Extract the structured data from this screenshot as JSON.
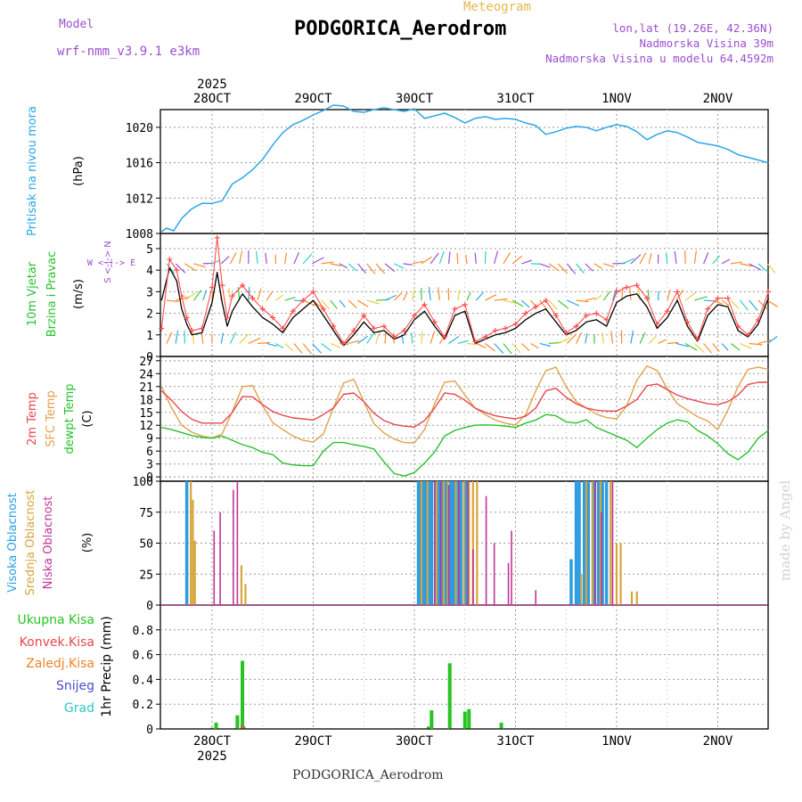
{
  "header": {
    "meteogram_label": "Meteogram",
    "model_label": "Model",
    "model_name": "wrf-nmm_v3.9.1  e3km",
    "station": "PODGORICA_Aerodrom",
    "lonlat": "lon,lat (19.26E, 42.36N)",
    "elevation": "Nadmorska Visina 39m",
    "model_elevation": "Nadmorska Visina u modelu 64.4592m",
    "footer": "PODGORICA_Aerodrom",
    "credit": "made by Angel"
  },
  "time_axis": {
    "top_year": "2025",
    "bottom_year": "2025",
    "days": [
      "28OCT",
      "29OCT",
      "30OCT",
      "31OCT",
      "1NOV",
      "2NOV"
    ]
  },
  "colors": {
    "pressure": "#2aa7e6",
    "wind_speed": "#000000",
    "gust": "#ff4d4d",
    "temp2m": "#e8474c",
    "sfc_temp": "#e0a24a",
    "dewpt": "#27c22d",
    "high_cloud": "#2a9de3",
    "mid_cloud": "#d6a53c",
    "low_cloud": "#c0359a",
    "precip_total": "#25c41f",
    "precip_conv": "#e8474c",
    "precip_frozen": "#f0822a",
    "snow": "#4b4bd6",
    "graupel": "#2ec6c6",
    "grid": "#999999"
  },
  "chart_data": [
    {
      "type": "line",
      "name": "pressure",
      "ylabel": "Pritisak na nivou mora",
      "unit": "(hPa)",
      "ylim": [
        1008,
        1022
      ],
      "yticks": [
        1008,
        1012,
        1016,
        1020
      ],
      "x_days": [
        -0.5,
        -0.45,
        -0.38,
        -0.3,
        -0.2,
        -0.1,
        0,
        0.1,
        0.2,
        0.3,
        0.4,
        0.5,
        0.6,
        0.7,
        0.8,
        0.9,
        1,
        1.1,
        1.2,
        1.3,
        1.4,
        1.5,
        1.6,
        1.7,
        1.8,
        1.9,
        2,
        2.1,
        2.2,
        2.3,
        2.4,
        2.5,
        2.6,
        2.7,
        2.8,
        2.9,
        3,
        3.1,
        3.2,
        3.3,
        3.4,
        3.5,
        3.6,
        3.7,
        3.8,
        3.9,
        4,
        4.1,
        4.2,
        4.3,
        4.4,
        4.5,
        4.6,
        4.7,
        4.8,
        4.9,
        5,
        5.1,
        5.2,
        5.5
      ],
      "values": [
        1008.2,
        1008.6,
        1008.3,
        1009.7,
        1010.8,
        1011.4,
        1011.4,
        1011.7,
        1013.6,
        1014.3,
        1015.2,
        1016.4,
        1018.0,
        1019.4,
        1020.3,
        1020.8,
        1021.4,
        1021.9,
        1022.5,
        1022.4,
        1021.8,
        1021.7,
        1022.0,
        1022.2,
        1022.0,
        1021.8,
        1022.1,
        1021.0,
        1021.3,
        1021.6,
        1021.1,
        1020.5,
        1021.0,
        1021.2,
        1020.9,
        1021.0,
        1020.9,
        1020.5,
        1020.2,
        1019.2,
        1019.5,
        1019.9,
        1020.1,
        1020.0,
        1019.6,
        1020.0,
        1020.3,
        1020.1,
        1019.5,
        1018.6,
        1019.2,
        1019.6,
        1019.4,
        1018.9,
        1018.3,
        1018.1,
        1017.9,
        1017.5,
        1016.9,
        1016.0
      ]
    },
    {
      "type": "line",
      "name": "wind",
      "ylabel": "10m Vjetar Brzina i Pravac",
      "unit": "(m/s)",
      "axis_legend": "W <-|-> E",
      "axis_legend_vertical": "S <-|-> N",
      "ylim": [
        0,
        5.7
      ],
      "yticks": [
        0,
        1,
        2,
        3,
        4,
        5
      ],
      "x_days": [
        -0.5,
        -0.42,
        -0.35,
        -0.3,
        -0.25,
        -0.2,
        -0.1,
        0,
        0.05,
        0.1,
        0.15,
        0.2,
        0.3,
        0.4,
        0.5,
        0.6,
        0.7,
        0.8,
        0.9,
        1,
        1.1,
        1.2,
        1.3,
        1.4,
        1.5,
        1.6,
        1.7,
        1.8,
        1.9,
        2,
        2.1,
        2.2,
        2.3,
        2.4,
        2.5,
        2.6,
        2.7,
        2.8,
        2.9,
        3,
        3.1,
        3.2,
        3.3,
        3.4,
        3.5,
        3.6,
        3.7,
        3.8,
        3.9,
        4,
        4.1,
        4.2,
        4.3,
        4.4,
        4.5,
        4.6,
        4.7,
        4.8,
        4.9,
        5,
        5.1,
        5.2,
        5.3,
        5.4,
        5.5
      ],
      "speed": [
        2.6,
        4.1,
        3.5,
        2.2,
        1.5,
        1.0,
        1.1,
        2.5,
        3.9,
        2.5,
        1.4,
        2.1,
        2.9,
        2.3,
        1.8,
        1.5,
        1.1,
        1.8,
        2.2,
        2.6,
        1.9,
        1.2,
        0.5,
        1.0,
        1.6,
        1.1,
        1.2,
        0.8,
        1.0,
        1.7,
        2.1,
        1.4,
        0.8,
        1.9,
        2.1,
        0.6,
        0.8,
        1.0,
        1.1,
        1.3,
        1.7,
        2.0,
        2.2,
        1.6,
        1.0,
        1.2,
        1.6,
        1.7,
        1.4,
        2.5,
        2.8,
        2.9,
        2.3,
        1.3,
        1.8,
        2.6,
        1.4,
        0.7,
        1.9,
        2.4,
        2.3,
        1.2,
        0.9,
        1.5,
        2.7
      ],
      "gust": [
        1.3,
        4.5,
        4.0,
        2.8,
        1.8,
        1.2,
        1.3,
        3.2,
        5.5,
        3.3,
        1.8,
        2.8,
        3.3,
        2.7,
        2.2,
        1.8,
        1.3,
        2.1,
        2.6,
        3.0,
        2.2,
        1.4,
        0.6,
        1.2,
        1.9,
        1.3,
        1.4,
        0.9,
        1.2,
        1.9,
        2.4,
        1.6,
        0.9,
        2.2,
        2.4,
        0.7,
        0.9,
        1.2,
        1.3,
        1.5,
        2.0,
        2.3,
        2.6,
        1.9,
        1.1,
        1.4,
        1.9,
        2.0,
        1.7,
        3.0,
        3.2,
        3.3,
        2.7,
        1.5,
        2.1,
        3.0,
        1.6,
        0.8,
        2.2,
        2.7,
        2.7,
        1.4,
        1.0,
        1.7,
        3.0
      ]
    },
    {
      "type": "line",
      "name": "temperature",
      "ylabel": "2m Temp",
      "ylabel2": "SFC Temp",
      "ylabel3": "dewpt Temp",
      "unit": "(C)",
      "ylim": [
        -1,
        28
      ],
      "yticks": [
        0,
        3,
        6,
        9,
        12,
        15,
        18,
        21,
        24,
        27
      ],
      "x_days": [
        -0.5,
        -0.4,
        -0.3,
        -0.2,
        -0.1,
        0,
        0.1,
        0.2,
        0.3,
        0.4,
        0.5,
        0.6,
        0.7,
        0.8,
        0.9,
        1,
        1.1,
        1.2,
        1.3,
        1.4,
        1.5,
        1.6,
        1.7,
        1.8,
        1.9,
        2,
        2.1,
        2.2,
        2.3,
        2.4,
        2.5,
        2.6,
        2.7,
        2.8,
        2.9,
        3,
        3.1,
        3.2,
        3.3,
        3.4,
        3.5,
        3.6,
        3.7,
        3.8,
        3.9,
        4,
        4.1,
        4.2,
        4.3,
        4.4,
        4.5,
        4.6,
        4.7,
        4.8,
        4.9,
        5,
        5.1,
        5.2,
        5.3,
        5.4,
        5.5
      ],
      "t2m": [
        20.0,
        17.8,
        15.2,
        13.4,
        12.5,
        12.5,
        12.5,
        15.0,
        18.7,
        18.6,
        16.8,
        15.2,
        14.3,
        13.7,
        13.5,
        13.2,
        14.5,
        16.0,
        19.2,
        19.5,
        17.5,
        14.8,
        13.1,
        12.2,
        11.8,
        11.6,
        13.1,
        16.0,
        19.5,
        19.2,
        17.8,
        16.0,
        15.0,
        14.2,
        13.8,
        13.5,
        14.1,
        16.0,
        20.0,
        20.6,
        18.5,
        17.0,
        16.0,
        15.5,
        15.3,
        15.3,
        16.5,
        18.0,
        21.2,
        21.6,
        20.3,
        19.0,
        18.2,
        17.6,
        17.0,
        16.8,
        17.5,
        19.0,
        21.5,
        22.0,
        22.0
      ],
      "sfc": [
        21.0,
        16.0,
        12.0,
        10.4,
        9.5,
        9.0,
        10.0,
        15.2,
        21.0,
        21.2,
        16.5,
        12.6,
        11.0,
        9.5,
        8.5,
        8.1,
        10.0,
        16.0,
        21.8,
        22.7,
        17.5,
        12.4,
        10.2,
        8.8,
        8.0,
        7.9,
        11.0,
        17.0,
        22.0,
        22.3,
        19.0,
        16.0,
        14.5,
        13.2,
        12.5,
        12.0,
        14.5,
        20.0,
        24.7,
        25.5,
        21.0,
        17.5,
        16.0,
        14.6,
        13.8,
        13.5,
        16.5,
        22.5,
        25.8,
        24.7,
        20.5,
        17.0,
        15.5,
        14.0,
        13.0,
        11.0,
        15.5,
        21.0,
        25.0,
        25.5,
        25.0
      ],
      "dew": [
        11.5,
        11.0,
        10.3,
        9.6,
        9.2,
        9.0,
        9.5,
        8.5,
        7.5,
        6.8,
        5.7,
        5.2,
        3.2,
        2.8,
        2.6,
        2.6,
        6.0,
        8.0,
        8.0,
        7.5,
        7.1,
        6.5,
        3.5,
        0.8,
        0.2,
        1.0,
        3.2,
        5.8,
        9.5,
        10.8,
        11.5,
        12.0,
        12.1,
        12.0,
        11.8,
        11.5,
        12.5,
        13.2,
        14.5,
        14.2,
        12.8,
        12.5,
        13.3,
        11.5,
        10.5,
        9.5,
        8.5,
        6.8,
        9.0,
        11.0,
        12.5,
        13.3,
        12.8,
        10.8,
        9.5,
        7.7,
        5.4,
        4.0,
        5.8,
        9.0,
        10.8
      ]
    },
    {
      "type": "bar",
      "name": "cloudiness",
      "ylabel": "Visoka Oblacnost",
      "ylabel2": "Srednja Oblacnost",
      "ylabel3": "Niska Oblacnost",
      "unit": "(%)",
      "ylim": [
        0,
        100
      ],
      "yticks": [
        0,
        25,
        50,
        75,
        100
      ],
      "high": [
        [
          -0.25,
          100
        ],
        [
          2.04,
          100
        ],
        [
          2.06,
          100
        ],
        [
          2.09,
          100
        ],
        [
          2.11,
          100
        ],
        [
          2.14,
          100
        ],
        [
          2.17,
          100
        ],
        [
          2.21,
          100
        ],
        [
          2.24,
          100
        ],
        [
          2.27,
          100
        ],
        [
          2.31,
          100
        ],
        [
          2.36,
          100
        ],
        [
          2.39,
          100
        ],
        [
          2.43,
          100
        ],
        [
          2.46,
          100
        ],
        [
          2.51,
          100
        ],
        [
          3.55,
          37
        ],
        [
          3.6,
          100
        ],
        [
          3.63,
          100
        ],
        [
          3.68,
          100
        ],
        [
          3.72,
          100
        ],
        [
          3.78,
          100
        ],
        [
          3.82,
          100
        ],
        [
          3.86,
          100
        ],
        [
          3.9,
          100
        ]
      ],
      "mid": [
        [
          -0.21,
          100
        ],
        [
          -0.19,
          85
        ],
        [
          -0.17,
          52
        ],
        [
          0.29,
          32
        ],
        [
          0.33,
          17
        ],
        [
          2.07,
          100
        ],
        [
          2.13,
          100
        ],
        [
          2.22,
          100
        ],
        [
          2.29,
          100
        ],
        [
          2.33,
          100
        ],
        [
          2.41,
          100
        ],
        [
          2.49,
          100
        ],
        [
          2.54,
          100
        ],
        [
          2.58,
          100
        ],
        [
          2.62,
          100
        ],
        [
          3.65,
          25
        ],
        [
          3.7,
          100
        ],
        [
          3.76,
          100
        ],
        [
          3.84,
          100
        ],
        [
          3.94,
          100
        ],
        [
          4.0,
          50
        ],
        [
          4.04,
          50
        ],
        [
          4.15,
          11
        ],
        [
          4.2,
          11
        ]
      ],
      "low": [
        [
          0.02,
          60
        ],
        [
          0.08,
          75
        ],
        [
          0.21,
          93
        ],
        [
          0.25,
          100
        ],
        [
          2.2,
          100
        ],
        [
          2.26,
          100
        ],
        [
          2.34,
          97
        ],
        [
          2.44,
          100
        ],
        [
          2.53,
          100
        ],
        [
          2.58,
          45
        ],
        [
          2.71,
          88
        ],
        [
          2.79,
          50
        ],
        [
          2.93,
          34
        ],
        [
          2.96,
          60
        ],
        [
          3.2,
          12
        ],
        [
          3.79,
          100
        ],
        [
          3.85,
          75
        ],
        [
          3.96,
          100
        ]
      ]
    },
    {
      "type": "bar",
      "name": "precipitation",
      "ylabel": "1hr Precip",
      "unit": "(mm)",
      "legend": [
        "Ukupna Kisa",
        "Konvek.Kisa",
        "Zaledj.Kisa",
        "Snijeg",
        "Grad"
      ],
      "ylim": [
        0,
        1.0
      ],
      "yticks": [
        0,
        0.2,
        0.4,
        0.6,
        0.8
      ],
      "total": [
        [
          0,
          0.01
        ],
        [
          0.04,
          0.05
        ],
        [
          0.25,
          0.11
        ],
        [
          0.3,
          0.55
        ],
        [
          2.14,
          0.02
        ],
        [
          2.17,
          0.15
        ],
        [
          2.35,
          0.53
        ],
        [
          2.5,
          0.14
        ],
        [
          2.54,
          0.16
        ],
        [
          2.86,
          0.05
        ]
      ],
      "convective": [
        [
          0.29,
          0.03
        ],
        [
          0.32,
          0.02
        ]
      ]
    }
  ]
}
